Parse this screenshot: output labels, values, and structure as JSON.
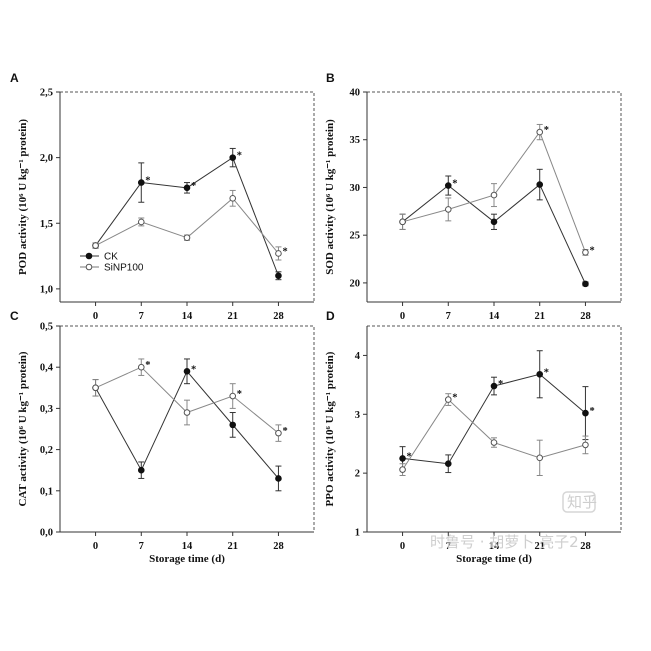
{
  "legend": {
    "ck": "CK",
    "sinp": "SiNP100"
  },
  "watermark": {
    "text": "时鲁号 · 胡萝卜 亮子2",
    "badge": "知乎"
  },
  "x_label": "Storage time (d)",
  "chart_data": [
    {
      "id": "A",
      "type": "line",
      "panel_letter": "A",
      "x": [
        0,
        7,
        14,
        21,
        28
      ],
      "ylabel": "POD activity (10⁶ U kg⁻¹ protein)",
      "xlabel": "",
      "ylim": [
        0.9,
        2.5
      ],
      "yticks": [
        "1,0",
        "1,5",
        "2,0",
        "2,5"
      ],
      "ytick_values": [
        1.0,
        1.5,
        2.0,
        2.5
      ],
      "series": [
        {
          "name": "CK",
          "marker": "filled",
          "values": [
            1.33,
            1.81,
            1.77,
            2.0,
            1.1
          ],
          "errors": [
            0.02,
            0.15,
            0.04,
            0.07,
            0.03
          ],
          "star": [
            false,
            true,
            true,
            true,
            false
          ]
        },
        {
          "name": "SiNP100",
          "marker": "open",
          "values": [
            1.33,
            1.51,
            1.39,
            1.69,
            1.27
          ],
          "errors": [
            0.02,
            0.03,
            0.02,
            0.06,
            0.05
          ],
          "star": [
            false,
            false,
            false,
            false,
            true
          ]
        }
      ]
    },
    {
      "id": "B",
      "type": "line",
      "panel_letter": "B",
      "x": [
        0,
        7,
        14,
        21,
        28
      ],
      "ylabel": "SOD activity (10⁶ U kg⁻¹ protein)",
      "xlabel": "",
      "ylim": [
        18,
        40
      ],
      "yticks": [
        "20",
        "25",
        "30",
        "35",
        "40"
      ],
      "ytick_values": [
        20,
        25,
        30,
        35,
        40
      ],
      "series": [
        {
          "name": "CK",
          "marker": "filled",
          "values": [
            26.4,
            30.2,
            26.4,
            30.3,
            19.9
          ],
          "errors": [
            0.8,
            1.0,
            0.8,
            1.6,
            0.2
          ],
          "star": [
            false,
            true,
            false,
            false,
            false
          ]
        },
        {
          "name": "SiNP100",
          "marker": "open",
          "values": [
            26.4,
            27.7,
            29.2,
            35.8,
            23.2
          ],
          "errors": [
            0.8,
            1.2,
            1.2,
            0.8,
            0.3
          ],
          "star": [
            false,
            false,
            false,
            true,
            true
          ]
        }
      ]
    },
    {
      "id": "C",
      "type": "line",
      "panel_letter": "C",
      "x": [
        0,
        7,
        14,
        21,
        28
      ],
      "ylabel": "CAT activity (10⁶ U kg⁻¹ protein)",
      "xlabel": "Storage time (d)",
      "ylim": [
        0.0,
        0.5
      ],
      "yticks": [
        "0,0",
        "0,1",
        "0,2",
        "0,3",
        "0,4",
        "0,5"
      ],
      "ytick_values": [
        0.0,
        0.1,
        0.2,
        0.3,
        0.4,
        0.5
      ],
      "series": [
        {
          "name": "CK",
          "marker": "filled",
          "values": [
            0.35,
            0.15,
            0.39,
            0.26,
            0.13
          ],
          "errors": [
            0.02,
            0.02,
            0.03,
            0.03,
            0.03
          ],
          "star": [
            false,
            false,
            true,
            false,
            false
          ]
        },
        {
          "name": "SiNP100",
          "marker": "open",
          "values": [
            0.35,
            0.4,
            0.29,
            0.33,
            0.24
          ],
          "errors": [
            0.02,
            0.02,
            0.03,
            0.03,
            0.02
          ],
          "star": [
            false,
            true,
            false,
            true,
            true
          ]
        }
      ]
    },
    {
      "id": "D",
      "type": "line",
      "panel_letter": "D",
      "x": [
        0,
        7,
        14,
        21,
        28
      ],
      "ylabel": "PPO activity (10⁶ U kg⁻¹ protein)",
      "xlabel": "Storage time (d)",
      "ylim": [
        1.0,
        4.5
      ],
      "yticks": [
        "1",
        "2",
        "3",
        "4"
      ],
      "ytick_values": [
        1,
        2,
        3,
        4
      ],
      "series": [
        {
          "name": "CK",
          "marker": "filled",
          "values": [
            2.25,
            2.16,
            3.48,
            3.68,
            3.02
          ],
          "errors": [
            0.2,
            0.15,
            0.15,
            0.4,
            0.45
          ],
          "star": [
            true,
            false,
            true,
            true,
            true
          ]
        },
        {
          "name": "SiNP100",
          "marker": "open",
          "values": [
            2.06,
            3.25,
            2.52,
            2.26,
            2.48
          ],
          "errors": [
            0.1,
            0.1,
            0.08,
            0.3,
            0.15
          ],
          "star": [
            false,
            true,
            false,
            false,
            false
          ]
        }
      ]
    }
  ]
}
